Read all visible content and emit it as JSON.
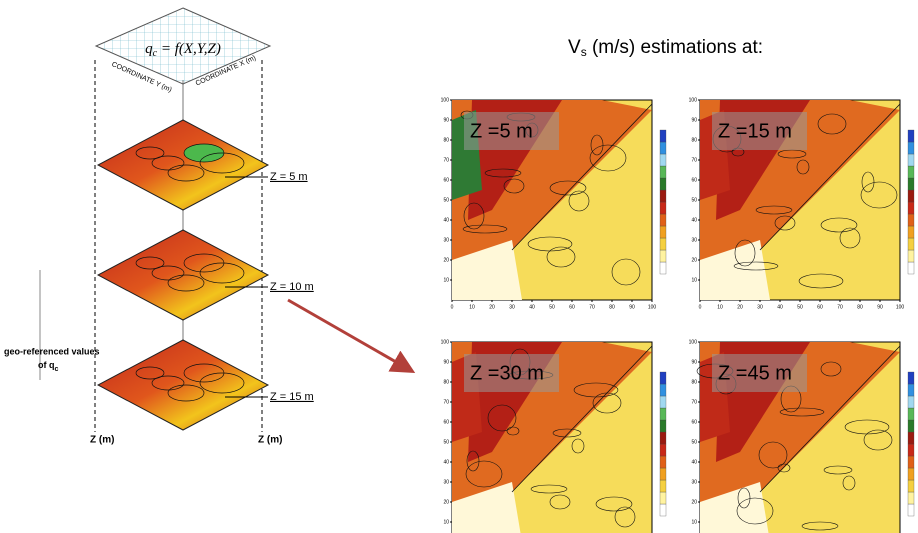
{
  "diagram": {
    "formula": [
      "q",
      "c",
      " = f(X,Y,Z)"
    ],
    "coordinate_y": "COORDINATE Y (m)",
    "coordinate_x": "COORDINATE X (m)",
    "layers": [
      "Z = 5 m",
      "Z = 10 m",
      "Z = 15 m"
    ],
    "side_label": [
      "geo-referenced values",
      "of q",
      "c"
    ],
    "axis_labels": [
      "Z (m)",
      "Z (m)"
    ]
  },
  "estimations": {
    "title": [
      "V",
      "s",
      " (m/s) estimations at:"
    ],
    "panels": [
      "Z =5 m",
      "Z =15 m",
      "Z =30 m",
      "Z =45 m"
    ],
    "x_ticks": [
      0,
      10,
      20,
      30,
      40,
      50,
      60,
      70,
      80,
      90,
      100
    ],
    "y_ticks": [
      10,
      20,
      30,
      40,
      50,
      60,
      70,
      80,
      90,
      100
    ]
  }
}
